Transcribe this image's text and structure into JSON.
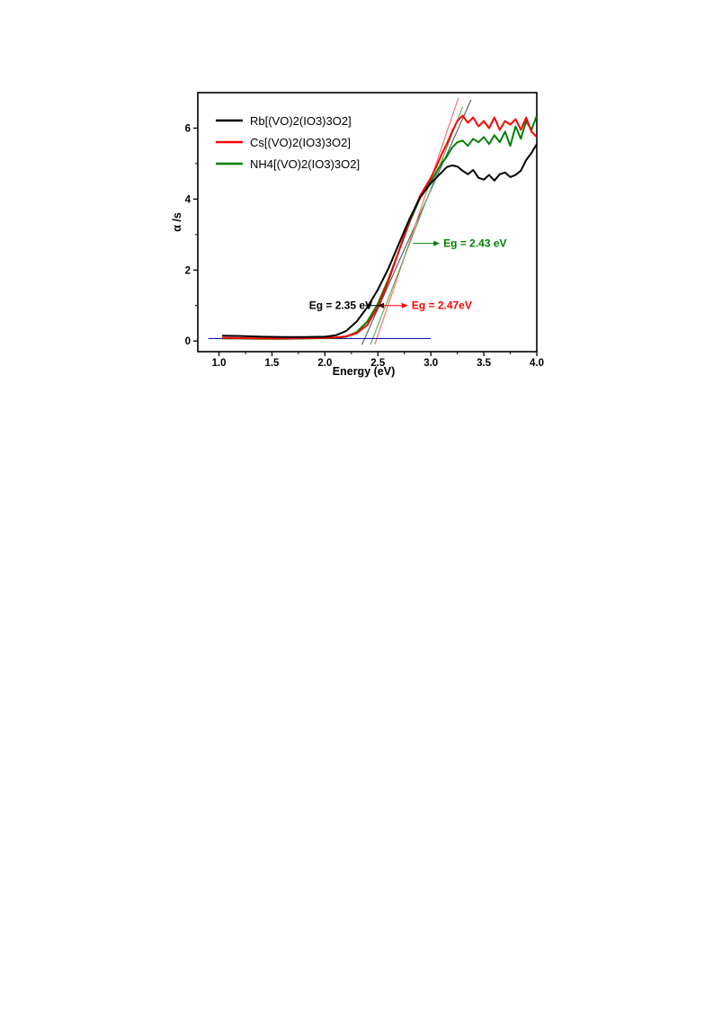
{
  "chart_data": {
    "type": "line",
    "xlabel": "Energy (eV)",
    "ylabel": "α /s",
    "xlim": [
      0.8,
      4.0
    ],
    "ylim": [
      -0.3,
      7.0
    ],
    "x_ticks": [
      "1.0",
      "1.5",
      "2.0",
      "2.5",
      "3.0",
      "3.5",
      "4.0"
    ],
    "y_ticks": [
      "0",
      "2",
      "4",
      "6"
    ],
    "grid": false,
    "legend_position": "top-left",
    "series": [
      {
        "name": "Rb[(VO)2(IO3)3O2]",
        "color": "#000000",
        "x": [
          1.03,
          1.2,
          1.4,
          1.6,
          1.8,
          2.0,
          2.1,
          2.2,
          2.3,
          2.4,
          2.5,
          2.6,
          2.7,
          2.8,
          2.9,
          3.0,
          3.05,
          3.1,
          3.15,
          3.2,
          3.25,
          3.3,
          3.35,
          3.4,
          3.45,
          3.5,
          3.55,
          3.6,
          3.65,
          3.7,
          3.75,
          3.8,
          3.85,
          3.9,
          3.95,
          4.0
        ],
        "y": [
          0.15,
          0.14,
          0.12,
          0.11,
          0.11,
          0.12,
          0.16,
          0.28,
          0.55,
          0.95,
          1.45,
          2.05,
          2.75,
          3.45,
          4.05,
          4.45,
          4.6,
          4.75,
          4.9,
          4.95,
          4.92,
          4.8,
          4.7,
          4.82,
          4.6,
          4.55,
          4.68,
          4.52,
          4.7,
          4.75,
          4.62,
          4.68,
          4.8,
          5.1,
          5.3,
          5.55
        ]
      },
      {
        "name": "Cs[(VO)2(IO3)3O2]",
        "color": "#ff0000",
        "x": [
          1.03,
          1.2,
          1.4,
          1.6,
          1.8,
          2.0,
          2.1,
          2.2,
          2.3,
          2.4,
          2.5,
          2.6,
          2.7,
          2.8,
          2.9,
          3.0,
          3.05,
          3.1,
          3.15,
          3.2,
          3.25,
          3.3,
          3.35,
          3.4,
          3.45,
          3.5,
          3.55,
          3.6,
          3.65,
          3.7,
          3.75,
          3.8,
          3.85,
          3.9,
          3.95,
          4.0
        ],
        "y": [
          0.09,
          0.08,
          0.07,
          0.07,
          0.08,
          0.09,
          0.1,
          0.13,
          0.22,
          0.45,
          0.95,
          1.7,
          2.55,
          3.4,
          4.1,
          4.6,
          4.9,
          5.25,
          5.55,
          5.9,
          6.2,
          6.35,
          6.15,
          6.3,
          6.05,
          6.2,
          6.0,
          6.3,
          5.95,
          6.2,
          6.1,
          6.25,
          5.95,
          6.3,
          5.9,
          5.75
        ]
      },
      {
        "name": "NH4[(VO)2(IO3)3O2]",
        "color": "#008000",
        "x": [
          1.03,
          1.2,
          1.4,
          1.6,
          1.8,
          2.0,
          2.1,
          2.2,
          2.3,
          2.4,
          2.5,
          2.6,
          2.7,
          2.8,
          2.9,
          3.0,
          3.05,
          3.1,
          3.15,
          3.2,
          3.25,
          3.3,
          3.35,
          3.4,
          3.45,
          3.5,
          3.55,
          3.6,
          3.65,
          3.7,
          3.75,
          3.8,
          3.85,
          3.9,
          3.95,
          4.0
        ],
        "y": [
          0.07,
          0.07,
          0.06,
          0.06,
          0.07,
          0.08,
          0.09,
          0.12,
          0.25,
          0.55,
          1.05,
          1.75,
          2.55,
          3.35,
          4.05,
          4.5,
          4.75,
          5.0,
          5.2,
          5.45,
          5.6,
          5.65,
          5.5,
          5.7,
          5.6,
          5.75,
          5.55,
          5.8,
          5.6,
          5.9,
          5.5,
          6.05,
          5.7,
          6.2,
          5.95,
          6.35
        ]
      }
    ],
    "fit_lines": [
      {
        "color": "#555566",
        "x": [
          2.35,
          3.38
        ],
        "y": [
          -0.1,
          6.8
        ]
      },
      {
        "color": "#ff6666",
        "x": [
          2.47,
          3.26
        ],
        "y": [
          -0.1,
          6.85
        ]
      },
      {
        "color": "#55aa55",
        "x": [
          2.43,
          3.3
        ],
        "y": [
          -0.1,
          6.6
        ]
      },
      {
        "color": "#1a1aaa",
        "x": [
          0.9,
          3.0
        ],
        "y": [
          0.07,
          0.07
        ]
      }
    ],
    "annotations": [
      {
        "text": "Eg = 2.35 eV",
        "color": "#000000",
        "x": 1.85,
        "y": 1.0,
        "arrow_to": [
          2.38,
          1.0
        ],
        "anchor": "text-left"
      },
      {
        "text": "Eg = 2.47eV",
        "color": "#ff0000",
        "x": 2.53,
        "y": 1.0,
        "anchor": "arrow-right"
      },
      {
        "text": "Eg = 2.43 eV",
        "color": "#008000",
        "x": 2.83,
        "y": 2.75,
        "anchor": "arrow-right"
      }
    ]
  }
}
